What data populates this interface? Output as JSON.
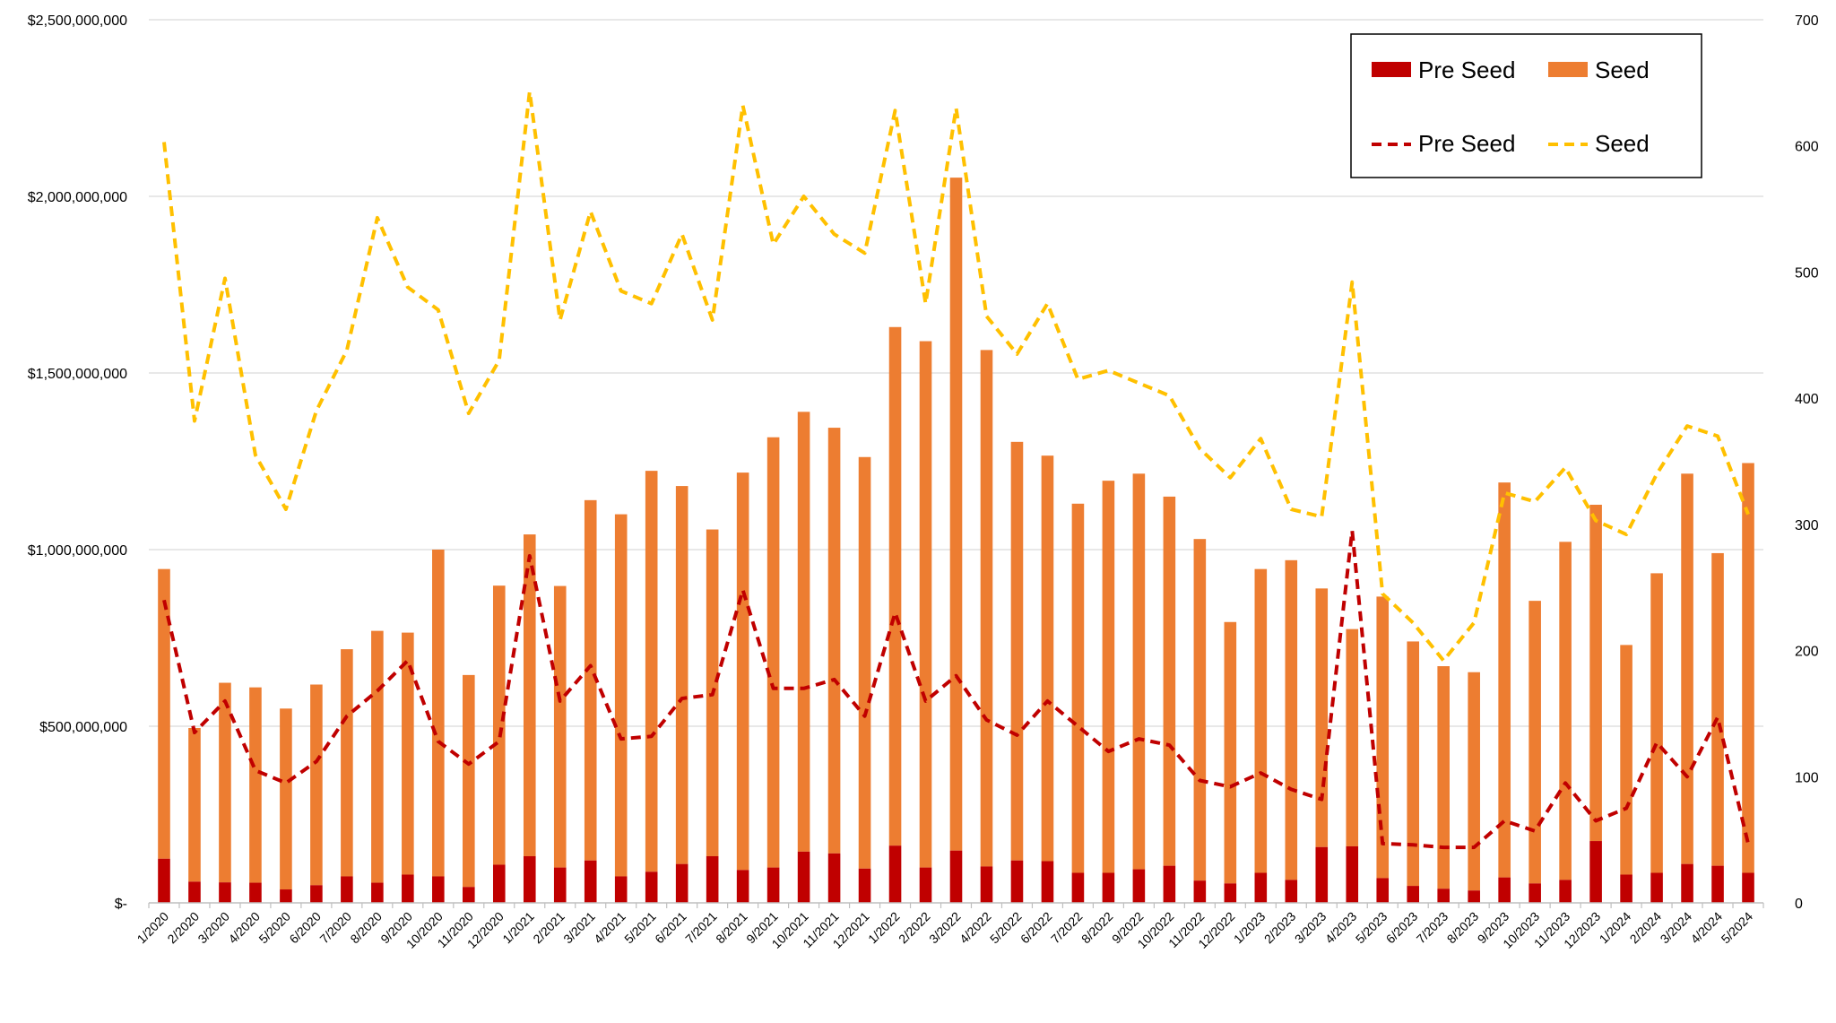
{
  "chart_data": {
    "type": "bar",
    "categories": [
      "1/2020",
      "2/2020",
      "3/2020",
      "4/2020",
      "5/2020",
      "6/2020",
      "7/2020",
      "8/2020",
      "9/2020",
      "10/2020",
      "11/2020",
      "12/2020",
      "1/2021",
      "2/2021",
      "3/2021",
      "4/2021",
      "5/2021",
      "6/2021",
      "7/2021",
      "8/2021",
      "9/2021",
      "10/2021",
      "11/2021",
      "12/2021",
      "1/2022",
      "2/2022",
      "3/2022",
      "4/2022",
      "5/2022",
      "6/2022",
      "7/2022",
      "8/2022",
      "9/2022",
      "10/2022",
      "11/2022",
      "12/2022",
      "1/2023",
      "2/2023",
      "3/2023",
      "4/2023",
      "5/2023",
      "6/2023",
      "7/2023",
      "8/2023",
      "9/2023",
      "10/2023",
      "11/2023",
      "12/2023",
      "1/2024",
      "2/2024",
      "3/2024",
      "4/2024",
      "5/2024"
    ],
    "left_axis": {
      "ylim": [
        0,
        2500000000
      ],
      "ticks": [
        "$-",
        "$500,000,000",
        "$1,000,000,000",
        "$1,500,000,000",
        "$2,000,000,000",
        "$2,500,000,000"
      ]
    },
    "right_axis": {
      "ylim": [
        0,
        700
      ],
      "ticks": [
        "0",
        "100",
        "200",
        "300",
        "400",
        "500",
        "600",
        "700"
      ]
    },
    "grid": true,
    "legend": "top-right",
    "colors": {
      "pre_seed_bar": "#C00000",
      "seed_bar": "#ED7D31",
      "pre_seed_line": "#C00000",
      "seed_line": "#FFC000",
      "grid": "#D9D9D9",
      "axis": "#BFBFBF"
    },
    "series": [
      {
        "name": "Pre Seed",
        "kind": "stacked-bar",
        "axis": "left",
        "values": [
          125000000,
          60000000,
          58000000,
          57000000,
          38000000,
          50000000,
          75000000,
          57000000,
          80000000,
          75000000,
          45000000,
          108000000,
          132000000,
          100000000,
          120000000,
          75000000,
          88000000,
          110000000,
          132000000,
          93000000,
          100000000,
          145000000,
          140000000,
          97000000,
          162000000,
          100000000,
          148000000,
          103000000,
          120000000,
          118000000,
          85000000,
          85000000,
          95000000,
          105000000,
          63000000,
          55000000,
          85000000,
          65000000,
          158000000,
          160000000,
          70000000,
          48000000,
          40000000,
          35000000,
          72000000,
          55000000,
          65000000,
          175000000,
          80000000,
          85000000,
          110000000,
          105000000,
          85000000
        ]
      },
      {
        "name": "Seed",
        "kind": "stacked-bar",
        "axis": "left",
        "values": [
          820000000,
          435000000,
          565000000,
          553000000,
          512000000,
          568000000,
          643000000,
          713000000,
          685000000,
          925000000,
          600000000,
          790000000,
          911000000,
          797000000,
          1020000000,
          1025000000,
          1135000000,
          1070000000,
          925000000,
          1125000000,
          1218000000,
          1245000000,
          1205000000,
          1165000000,
          1468000000,
          1490000000,
          1905000000,
          1462000000,
          1185000000,
          1148000000,
          1045000000,
          1110000000,
          1120000000,
          1045000000,
          967000000,
          740000000,
          860000000,
          905000000,
          732000000,
          615000000,
          797000000,
          692000000,
          630000000,
          618000000,
          1118000000,
          800000000,
          957000000,
          952000000,
          650000000,
          848000000,
          1105000000,
          885000000,
          1160000000
        ]
      },
      {
        "name": "Pre Seed",
        "kind": "dashed-line",
        "axis": "right",
        "values": [
          240,
          135,
          160,
          105,
          95,
          112,
          148,
          168,
          192,
          128,
          110,
          128,
          275,
          160,
          188,
          130,
          132,
          162,
          165,
          248,
          170,
          170,
          177,
          148,
          230,
          160,
          180,
          145,
          133,
          160,
          140,
          120,
          130,
          125,
          97,
          92,
          103,
          90,
          82,
          295,
          47,
          46,
          44,
          44,
          65,
          57,
          95,
          65,
          75,
          127,
          100,
          147,
          47
        ]
      },
      {
        "name": "Seed",
        "kind": "dashed-line",
        "axis": "right",
        "values": [
          603,
          382,
          495,
          355,
          312,
          390,
          438,
          543,
          488,
          470,
          388,
          430,
          643,
          462,
          548,
          485,
          475,
          530,
          462,
          632,
          522,
          560,
          530,
          515,
          628,
          475,
          630,
          465,
          435,
          475,
          415,
          422,
          412,
          402,
          360,
          337,
          368,
          312,
          306,
          492,
          245,
          222,
          192,
          222,
          325,
          318,
          345,
          303,
          292,
          340,
          378,
          370,
          308
        ]
      }
    ],
    "legend_entries": [
      {
        "label": "Pre Seed",
        "swatch": "bar",
        "color": "#C00000"
      },
      {
        "label": "Seed",
        "swatch": "bar",
        "color": "#ED7D31"
      },
      {
        "label": "Pre Seed",
        "swatch": "dashed-line",
        "color": "#C00000"
      },
      {
        "label": "Seed",
        "swatch": "dashed-line",
        "color": "#FFC000"
      }
    ]
  }
}
